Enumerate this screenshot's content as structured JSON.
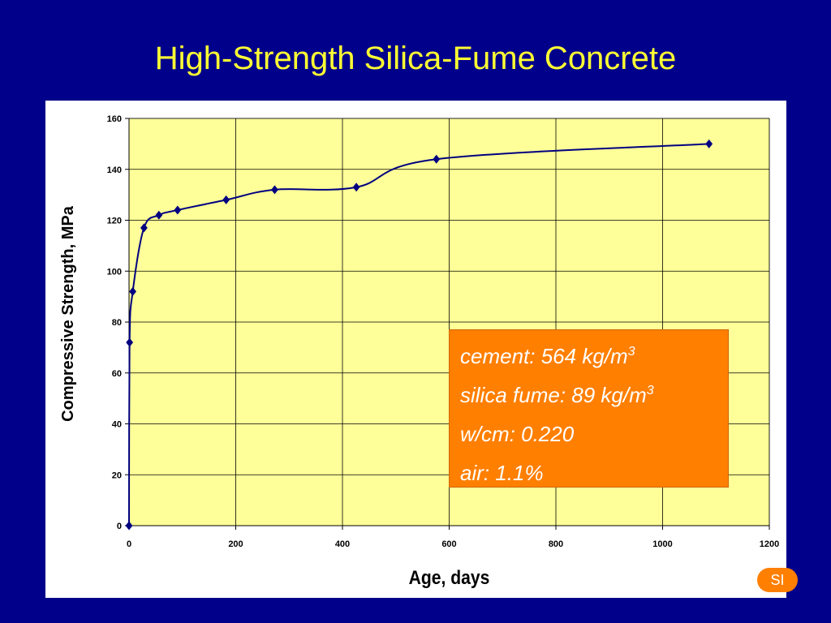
{
  "slide": {
    "title": "High-Strength Silica-Fume Concrete",
    "badge": "SI"
  },
  "info_box": {
    "lines": [
      {
        "text": "cement:  564 kg/m",
        "sup": "3"
      },
      {
        "text": "silica fume:  89 kg/m",
        "sup": "3"
      },
      {
        "text": "w/cm:  0.220",
        "sup": ""
      },
      {
        "text": "air:  1.1%",
        "sup": ""
      }
    ]
  },
  "colors": {
    "background": "#00008b",
    "title": "#ffff33",
    "plot_area": "#ffff99",
    "series": "#000080",
    "box": "#ff7f00"
  },
  "chart_data": {
    "type": "line",
    "title": "",
    "xlabel": "Age, days",
    "ylabel": "Compressive Strength, MPa",
    "xlim": [
      0,
      1200
    ],
    "ylim": [
      0,
      160
    ],
    "xticks": [
      0,
      200,
      400,
      600,
      800,
      1000,
      1200
    ],
    "yticks": [
      0,
      20,
      40,
      60,
      80,
      100,
      120,
      140,
      160
    ],
    "grid": true,
    "legend": "none",
    "marker": "diamond",
    "series": [
      {
        "x": [
          0,
          1,
          7,
          28,
          56,
          91,
          182,
          273,
          426,
          576,
          1087
        ],
        "y": [
          0,
          72,
          92,
          117,
          122,
          124,
          128,
          132,
          133,
          144,
          150
        ]
      }
    ]
  }
}
